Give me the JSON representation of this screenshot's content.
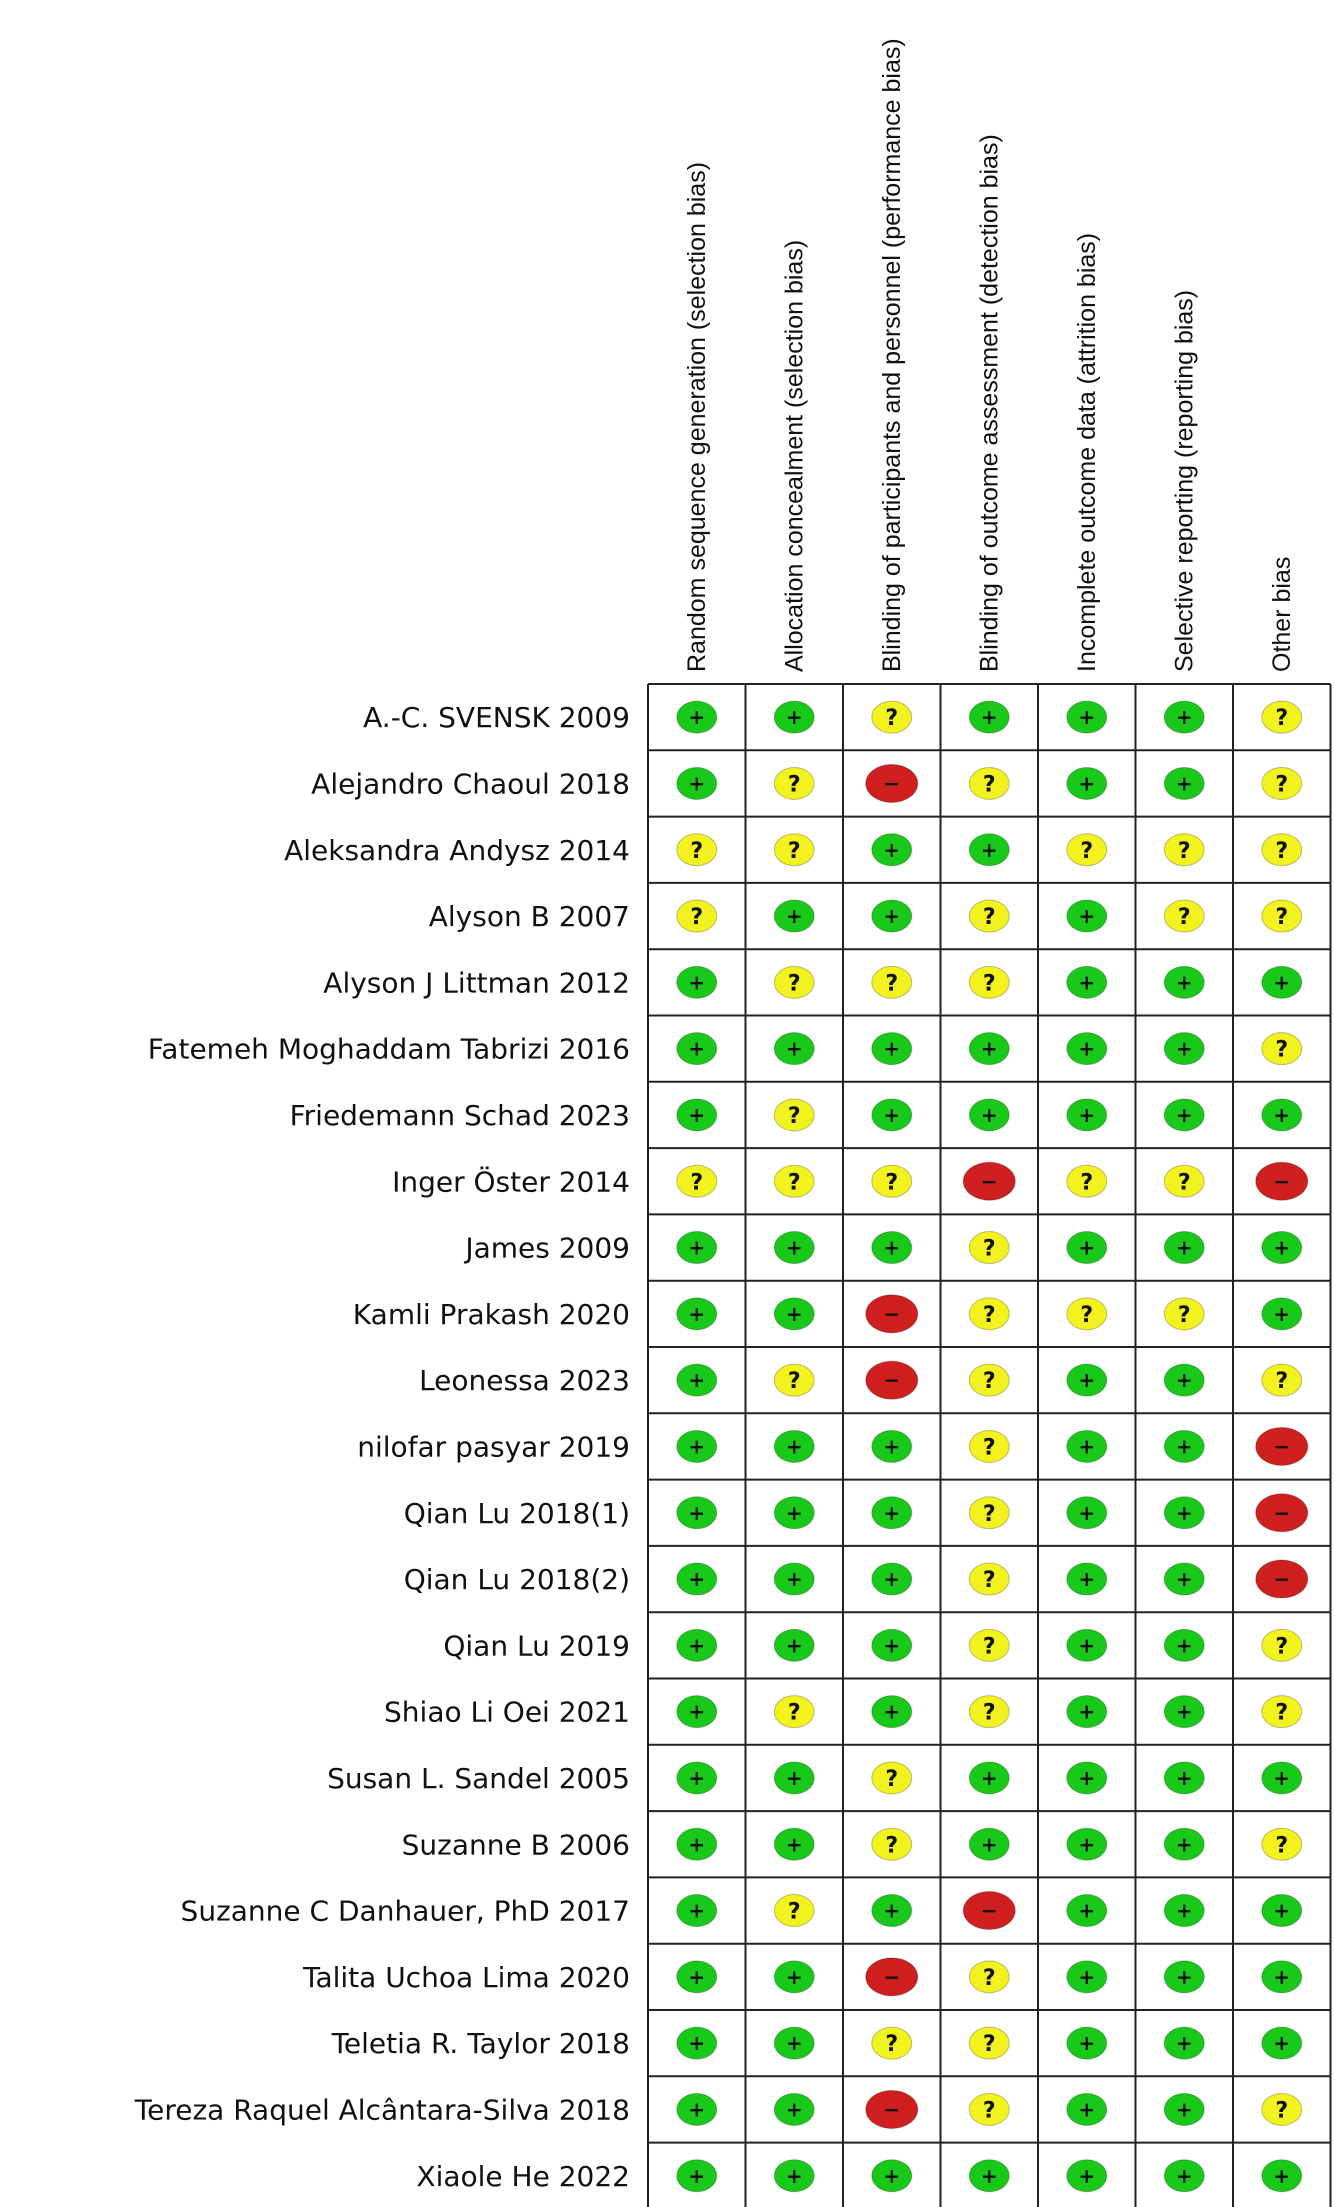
{
  "chart_data": {
    "type": "table",
    "columns": [
      "Random sequence generation (selection bias)",
      "Allocation concealment (selection bias)",
      "Blinding of participants and personnel (performance bias)",
      "Blinding of outcome assessment (detection bias)",
      "Incomplete outcome data (attrition bias)",
      "Selective reporting (reporting bias)",
      "Other bias"
    ],
    "legend": {
      "low": {
        "symbol": "+",
        "color": "#19c919"
      },
      "unclear": {
        "symbol": "?",
        "color": "#f2f21e"
      },
      "high": {
        "symbol": "−",
        "color": "#cf1f1f"
      }
    },
    "rows": [
      {
        "study": "A.-C. SVENSK 2009",
        "ratings": [
          "low",
          "low",
          "unclear",
          "low",
          "low",
          "low",
          "unclear"
        ]
      },
      {
        "study": "Alejandro Chaoul 2018",
        "ratings": [
          "low",
          "unclear",
          "high",
          "unclear",
          "low",
          "low",
          "unclear"
        ]
      },
      {
        "study": "Aleksandra Andysz 2014",
        "ratings": [
          "unclear",
          "unclear",
          "low",
          "low",
          "unclear",
          "unclear",
          "unclear"
        ]
      },
      {
        "study": "Alyson B 2007",
        "ratings": [
          "unclear",
          "low",
          "low",
          "unclear",
          "low",
          "unclear",
          "unclear"
        ]
      },
      {
        "study": "Alyson J Littman 2012",
        "ratings": [
          "low",
          "unclear",
          "unclear",
          "unclear",
          "low",
          "low",
          "low"
        ]
      },
      {
        "study": "Fatemeh Moghaddam Tabrizi 2016",
        "ratings": [
          "low",
          "low",
          "low",
          "low",
          "low",
          "low",
          "unclear"
        ]
      },
      {
        "study": "Friedemann Schad 2023",
        "ratings": [
          "low",
          "unclear",
          "low",
          "low",
          "low",
          "low",
          "low"
        ]
      },
      {
        "study": "Inger Öster 2014",
        "ratings": [
          "unclear",
          "unclear",
          "unclear",
          "high",
          "unclear",
          "unclear",
          "high"
        ]
      },
      {
        "study": "James 2009",
        "ratings": [
          "low",
          "low",
          "low",
          "unclear",
          "low",
          "low",
          "low"
        ]
      },
      {
        "study": "Kamli Prakash 2020",
        "ratings": [
          "low",
          "low",
          "high",
          "unclear",
          "unclear",
          "unclear",
          "low"
        ]
      },
      {
        "study": "Leonessa 2023",
        "ratings": [
          "low",
          "unclear",
          "high",
          "unclear",
          "low",
          "low",
          "unclear"
        ]
      },
      {
        "study": "nilofar pasyar 2019",
        "ratings": [
          "low",
          "low",
          "low",
          "unclear",
          "low",
          "low",
          "high"
        ]
      },
      {
        "study": "Qian Lu 2018(1)",
        "ratings": [
          "low",
          "low",
          "low",
          "unclear",
          "low",
          "low",
          "high"
        ]
      },
      {
        "study": "Qian Lu 2018(2)",
        "ratings": [
          "low",
          "low",
          "low",
          "unclear",
          "low",
          "low",
          "high"
        ]
      },
      {
        "study": "Qian Lu 2019",
        "ratings": [
          "low",
          "low",
          "low",
          "unclear",
          "low",
          "low",
          "unclear"
        ]
      },
      {
        "study": "Shiao Li Oei  2021",
        "ratings": [
          "low",
          "unclear",
          "low",
          "unclear",
          "low",
          "low",
          "unclear"
        ]
      },
      {
        "study": "Susan L. Sandel 2005",
        "ratings": [
          "low",
          "low",
          "unclear",
          "low",
          "low",
          "low",
          "low"
        ]
      },
      {
        "study": "Suzanne B 2006",
        "ratings": [
          "low",
          "low",
          "unclear",
          "low",
          "low",
          "low",
          "unclear"
        ]
      },
      {
        "study": "Suzanne C Danhauer, PhD 2017",
        "ratings": [
          "low",
          "unclear",
          "low",
          "high",
          "low",
          "low",
          "low"
        ]
      },
      {
        "study": "Talita Uchoa Lima 2020",
        "ratings": [
          "low",
          "low",
          "high",
          "unclear",
          "low",
          "low",
          "low"
        ]
      },
      {
        "study": "Teletia R. Taylor 2018",
        "ratings": [
          "low",
          "low",
          "unclear",
          "unclear",
          "low",
          "low",
          "low"
        ]
      },
      {
        "study": "Tereza Raquel Alcântara-Silva 2018",
        "ratings": [
          "low",
          "low",
          "high",
          "unclear",
          "low",
          "low",
          "unclear"
        ]
      },
      {
        "study": "Xiaole He 2022",
        "ratings": [
          "low",
          "low",
          "low",
          "low",
          "low",
          "low",
          "low"
        ]
      }
    ]
  }
}
